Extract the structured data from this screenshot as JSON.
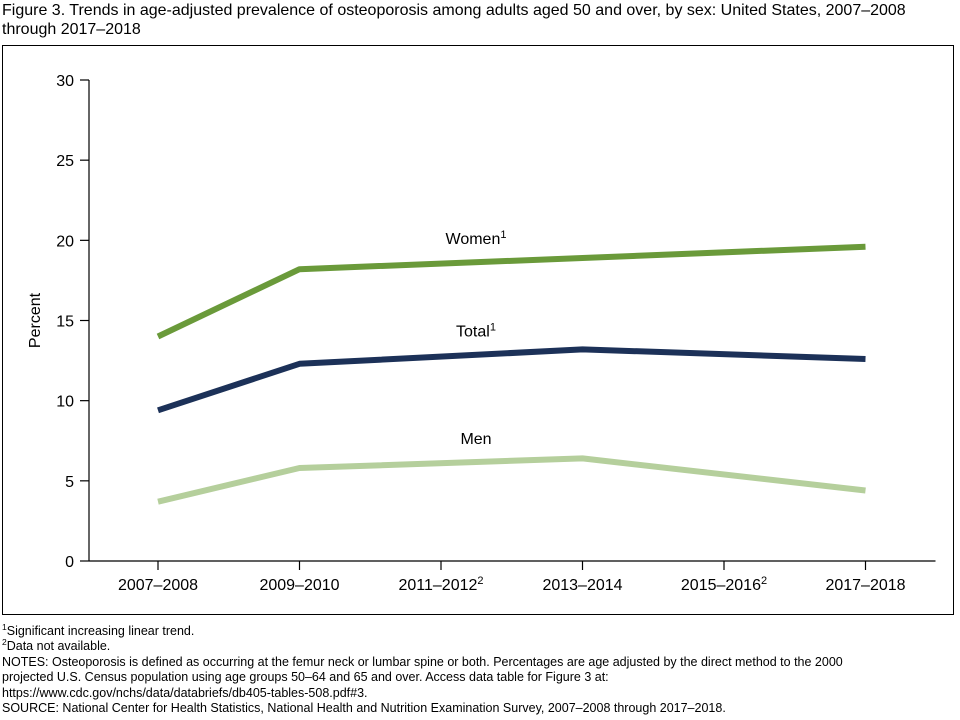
{
  "title": "Figure 3. Trends in age-adjusted prevalence of osteoporosis among adults aged 50 and over, by sex: United States, 2007–2008 through 2017–2018",
  "chart_data": {
    "type": "line",
    "title": "Figure 3. Trends in age-adjusted prevalence of osteoporosis among adults aged 50 and over, by sex: United States, 2007–2008 through 2017–2018",
    "xlabel": "",
    "ylabel": "Percent",
    "ylim": [
      0,
      30
    ],
    "yticks": [
      0,
      5,
      10,
      15,
      20,
      25,
      30
    ],
    "grid": false,
    "legend": "none (series labeled inline)",
    "categories": [
      {
        "label": "2007–2008",
        "sup": ""
      },
      {
        "label": "2009–2010",
        "sup": ""
      },
      {
        "label": "2011–2012",
        "sup": "2"
      },
      {
        "label": "2013–2014",
        "sup": ""
      },
      {
        "label": "2015–2016",
        "sup": "2"
      },
      {
        "label": "2017–2018",
        "sup": ""
      }
    ],
    "series": [
      {
        "name": "Women",
        "sup": "1",
        "color": "#6a9a3a",
        "values": [
          14.0,
          18.2,
          null,
          18.9,
          null,
          19.6
        ]
      },
      {
        "name": "Total",
        "sup": "1",
        "color": "#1c3158",
        "values": [
          9.4,
          12.3,
          null,
          13.2,
          null,
          12.6
        ]
      },
      {
        "name": "Men",
        "sup": "",
        "color": "#b5cf9c",
        "values": [
          3.7,
          5.8,
          null,
          6.4,
          null,
          4.4
        ]
      }
    ]
  },
  "notes": {
    "footnote1": {
      "mark": "1",
      "text": "Significant increasing linear trend."
    },
    "footnote2": {
      "mark": "2",
      "text": "Data not available."
    },
    "notes_line1": "NOTES: Osteoporosis is defined as occurring at the femur neck or lumbar spine or both. Percentages are age adjusted by the direct method to the 2000",
    "notes_line2": "projected U.S. Census population using age groups 50–64 and 65 and over. Access data table for Figure 3 at:",
    "notes_line3": "https://www.cdc.gov/nchs/data/databriefs/db405-tables-508.pdf#3.",
    "source": "SOURCE: National Center for Health Statistics, National Health and Nutrition Examination Survey, 2007–2008 through 2017–2018."
  }
}
